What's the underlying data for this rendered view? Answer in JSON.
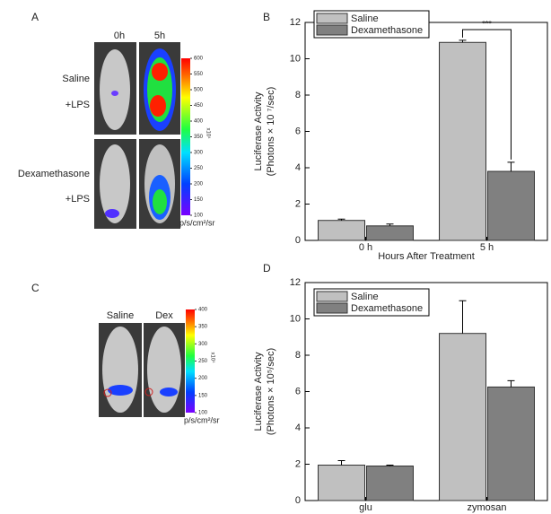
{
  "panels": {
    "A": {
      "label": "A",
      "columns": [
        "0h",
        "5h"
      ],
      "rows": [
        [
          "Saline",
          "+LPS"
        ],
        [
          "Dexamethasone",
          "+LPS"
        ]
      ],
      "colorbar": {
        "lim": [
          100,
          600
        ],
        "ticks": [
          100,
          150,
          200,
          250,
          300,
          350,
          400,
          450,
          500,
          550,
          600
        ],
        "scale_label": "x10⁴",
        "unit": "p/s/cm²/sr"
      }
    },
    "C": {
      "label": "C",
      "columns": [
        "Saline",
        "Dex"
      ],
      "colorbar": {
        "lim": [
          100,
          400
        ],
        "ticks": [
          100,
          150,
          200,
          250,
          300,
          350,
          400
        ],
        "scale_label": "x10⁴",
        "unit": "p/s/cm²/sr"
      }
    }
  },
  "chart_data": [
    {
      "type": "bar",
      "panel_label": "B",
      "categories": [
        "0 h",
        "5 h"
      ],
      "series": [
        {
          "name": "Saline",
          "color": "#c0c0c0",
          "values": [
            1.1,
            10.9
          ],
          "errors": [
            0.07,
            0.12
          ]
        },
        {
          "name": "Dexamethasone",
          "color": "#808080",
          "values": [
            0.8,
            3.8
          ],
          "errors": [
            0.1,
            0.5
          ]
        }
      ],
      "ylim": [
        0,
        12
      ],
      "yticks": [
        0,
        2,
        4,
        6,
        8,
        10,
        12
      ],
      "y_label": [
        "Luciferase Activity",
        "(Photons × 10 ⁷/sec)"
      ],
      "x_label": "Hours After Treatment",
      "annotation": "***",
      "legend": "upper left"
    },
    {
      "type": "bar",
      "panel_label": "D",
      "categories": [
        "glu",
        "zymosan"
      ],
      "series": [
        {
          "name": "Saline",
          "color": "#c0c0c0",
          "values": [
            1.95,
            9.2
          ],
          "errors": [
            0.25,
            1.8
          ]
        },
        {
          "name": "Dexamethasone",
          "color": "#808080",
          "values": [
            1.9,
            6.25
          ],
          "errors": [
            0.05,
            0.35
          ]
        }
      ],
      "ylim": [
        0,
        12
      ],
      "yticks": [
        0,
        2,
        4,
        6,
        8,
        10,
        12
      ],
      "y_label": [
        "Luciferase Activity",
        "(Photons × 10⁵/sec)"
      ],
      "legend": "upper left"
    }
  ]
}
